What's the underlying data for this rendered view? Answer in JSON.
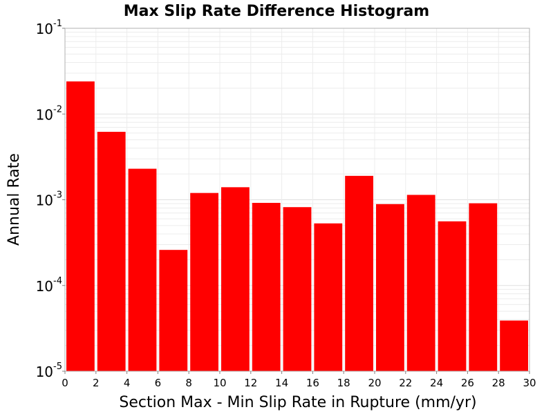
{
  "chart_data": {
    "type": "bar",
    "title": "Max Slip Rate Difference Histogram",
    "xlabel": "Section Max - Min Slip Rate in Rupture (mm/yr)",
    "ylabel": "Annual Rate",
    "yscale": "log",
    "xlim": [
      0,
      30
    ],
    "ylim": [
      1e-05,
      0.1
    ],
    "grid": true,
    "x_ticks": [
      "0",
      "2",
      "4",
      "6",
      "8",
      "10",
      "12",
      "14",
      "16",
      "18",
      "20",
      "22",
      "24",
      "26",
      "28",
      "30"
    ],
    "y_ticks": [
      {
        "base": "10",
        "exp": "-5"
      },
      {
        "base": "10",
        "exp": "-4"
      },
      {
        "base": "10",
        "exp": "-3"
      },
      {
        "base": "10",
        "exp": "-2"
      },
      {
        "base": "10",
        "exp": "-1"
      }
    ],
    "bar_color": "#ff0000",
    "bins": [
      {
        "x0": 0,
        "x1": 2,
        "value": 0.024
      },
      {
        "x0": 2,
        "x1": 4,
        "value": 0.0062
      },
      {
        "x0": 4,
        "x1": 6,
        "value": 0.0023
      },
      {
        "x0": 6,
        "x1": 8,
        "value": 0.00026
      },
      {
        "x0": 8,
        "x1": 10,
        "value": 0.0012
      },
      {
        "x0": 10,
        "x1": 12,
        "value": 0.0014
      },
      {
        "x0": 12,
        "x1": 14,
        "value": 0.00092
      },
      {
        "x0": 14,
        "x1": 16,
        "value": 0.00082
      },
      {
        "x0": 16,
        "x1": 18,
        "value": 0.00053
      },
      {
        "x0": 18,
        "x1": 20,
        "value": 0.0019
      },
      {
        "x0": 20,
        "x1": 22,
        "value": 0.00089
      },
      {
        "x0": 22,
        "x1": 24,
        "value": 0.00114
      },
      {
        "x0": 24,
        "x1": 26,
        "value": 0.00056
      },
      {
        "x0": 26,
        "x1": 28,
        "value": 0.00091
      },
      {
        "x0": 28,
        "x1": 30,
        "value": 3.9e-05
      }
    ]
  }
}
